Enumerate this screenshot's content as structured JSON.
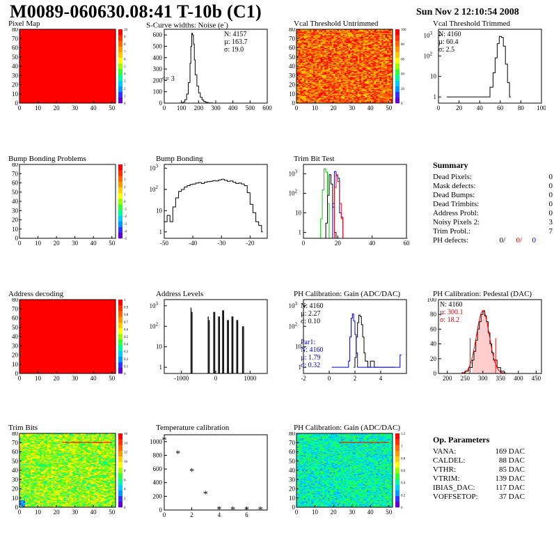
{
  "header": {
    "title": "M0089-060630.08:41 T-10b (C1)",
    "date": "Sun Nov  2 12:10:54 2008"
  },
  "panels": {
    "pixel_map": {
      "title": "Pixel Map"
    },
    "scurve": {
      "title": "S-Curve widths: Noise (e",
      "title_sup": "-",
      "title_end": ")",
      "stats": [
        "N: 4157",
        "µ: 163.7",
        "σ: 19.0"
      ],
      "annotation": "<= 3"
    },
    "vcal_untrimmed": {
      "title": "Vcal Threshold Untrimmed"
    },
    "vcal_trimmed": {
      "title": "Vcal Threshold Trimmed",
      "stats": [
        "N: 4160",
        "µ: 60.4",
        "σ:  2.5"
      ]
    },
    "bump_problems": {
      "title": "Bump Bonding Problems"
    },
    "bump_bonding": {
      "title": "Bump Bonding"
    },
    "trim_bit_test": {
      "title": "Trim Bit Test"
    },
    "address_decoding": {
      "title": "Address decoding"
    },
    "address_levels": {
      "title": "Address Levels"
    },
    "ph_gain": {
      "title": "PH Calibration: Gain (ADC/DAC)",
      "stats": [
        "N: 4160",
        "µ: 2.27",
        "σ: 0.10"
      ],
      "par1": {
        "label": "Par1:",
        "stats": [
          "N: 4160",
          "µ: 1.79",
          "σ: 0.32"
        ]
      }
    },
    "ph_pedestal": {
      "title": "PH Calibration: Pedestal (DAC)",
      "stats": [
        "N: 4160"
      ],
      "red_stats": [
        "µ: 300.1",
        "σ: 18.2"
      ]
    },
    "trim_bits": {
      "title": "Trim Bits"
    },
    "temperature": {
      "title": "Temperature calibration"
    },
    "ph_gain_map": {
      "title": "PH Calibration: Gain (ADC/DAC)"
    }
  },
  "summary": {
    "title": "Summary",
    "rows": [
      {
        "label": "Dead Pixels:",
        "value": "0"
      },
      {
        "label": "Mask defects:",
        "value": "0"
      },
      {
        "label": "Dead Bumps:",
        "value": "0"
      },
      {
        "label": "Dead Trimbits:",
        "value": "0"
      },
      {
        "label": "Address Probl:",
        "value": "0"
      },
      {
        "label": "Noisy Pixels 2:",
        "value": "3"
      },
      {
        "label": "Trim Probl.:",
        "value": "7"
      }
    ],
    "ph_label": "PH defects:",
    "ph_values": [
      {
        "text": "0/",
        "color": "#000000"
      },
      {
        "text": "0/",
        "color": "#cc0000"
      },
      {
        "text": "0",
        "color": "#0000cc"
      }
    ]
  },
  "op_params": {
    "title": "Op. Parameters",
    "rows": [
      {
        "label": "VANA:",
        "value": "169 DAC"
      },
      {
        "label": "CALDEL:",
        "value": "88 DAC"
      },
      {
        "label": "VTHR:",
        "value": "85 DAC"
      },
      {
        "label": "VTRIM:",
        "value": "139 DAC"
      },
      {
        "label": "IBIAS_DAC:",
        "value": "117 DAC"
      },
      {
        "label": "VOFFSETOP:",
        "value": "37 DAC"
      }
    ]
  },
  "colors": {
    "red": "#ff0000",
    "blue": "#0000cc",
    "green": "#00cc00",
    "palette": [
      "#6600cc",
      "#3333ff",
      "#0099ff",
      "#00ccff",
      "#00ff99",
      "#33ff33",
      "#99ff00",
      "#ffff00",
      "#ffcc00",
      "#ff9900",
      "#ff6600",
      "#ff3300",
      "#ff0000"
    ]
  },
  "chart_data": [
    {
      "id": "pixel_map",
      "type": "heatmap",
      "title": "Pixel Map",
      "xlim": [
        0,
        52
      ],
      "ylim": [
        0,
        80
      ],
      "xticks": [
        "0",
        "10",
        "20",
        "30",
        "40",
        "50"
      ],
      "yticks": [
        "0",
        "10",
        "20",
        "30",
        "40",
        "50",
        "60",
        "70",
        "80"
      ],
      "zticks": [
        "0",
        "1",
        "2",
        "3",
        "4",
        "5",
        "6",
        "7",
        "8",
        "9",
        "10"
      ],
      "fill": "uniform red"
    },
    {
      "id": "scurve",
      "type": "bar",
      "title": "S-Curve widths: Noise (e-)",
      "xlim": [
        0,
        600
      ],
      "ylim": [
        0,
        650
      ],
      "xticks": [
        "0",
        "100",
        "200",
        "300",
        "400",
        "500",
        "600"
      ],
      "yticks": [
        "0",
        "100",
        "200",
        "300",
        "400",
        "500",
        "600"
      ],
      "x": [
        90,
        100,
        110,
        120,
        130,
        140,
        150,
        155,
        160,
        165,
        170,
        175,
        180,
        190,
        200,
        210,
        220,
        230,
        240,
        250,
        260,
        270,
        280,
        290
      ],
      "values": [
        0,
        3,
        10,
        30,
        80,
        180,
        350,
        500,
        615,
        600,
        520,
        380,
        250,
        150,
        90,
        50,
        28,
        15,
        8,
        5,
        2,
        1,
        0,
        0
      ]
    },
    {
      "id": "vcal_untrimmed",
      "type": "heatmap",
      "title": "Vcal Threshold Untrimmed",
      "xlim": [
        0,
        52
      ],
      "ylim": [
        0,
        80
      ],
      "xticks": [
        "0",
        "10",
        "20",
        "30",
        "40",
        "50"
      ],
      "yticks": [
        "0",
        "10",
        "20",
        "30",
        "40",
        "50",
        "60",
        "70",
        "80"
      ],
      "zticks": [
        "0",
        "20",
        "40",
        "60",
        "80",
        "100"
      ]
    },
    {
      "id": "vcal_trimmed",
      "type": "bar",
      "title": "Vcal Threshold Trimmed",
      "log_y": true,
      "xlim": [
        0,
        100
      ],
      "ylim": [
        0.5,
        2000
      ],
      "xticks": [
        "0",
        "20",
        "40",
        "60",
        "80",
        "100"
      ],
      "yticks": [
        "1",
        "10",
        "10^2",
        "10^3"
      ],
      "x": [
        8,
        22,
        46,
        50,
        53,
        55,
        57,
        59,
        61,
        63,
        65,
        67,
        69
      ],
      "values": [
        1,
        1,
        1,
        3,
        15,
        80,
        400,
        900,
        800,
        300,
        40,
        5,
        1
      ]
    },
    {
      "id": "bump_problems",
      "type": "heatmap",
      "title": "Bump Bonding Problems",
      "xlim": [
        0,
        52
      ],
      "ylim": [
        0,
        80
      ],
      "xticks": [
        "0",
        "10",
        "20",
        "30",
        "40",
        "50"
      ],
      "yticks": [
        "0",
        "10",
        "20",
        "30",
        "40",
        "50",
        "60",
        "70",
        "80"
      ],
      "zticks": [
        "-5",
        "-4",
        "-3",
        "-2",
        "-1",
        "0",
        "1",
        "2",
        "3",
        "4",
        "5"
      ],
      "fill": "empty"
    },
    {
      "id": "bump_bonding",
      "type": "bar",
      "title": "Bump Bonding",
      "log_y": true,
      "xlim": [
        -50,
        -14
      ],
      "ylim": [
        0.5,
        1500
      ],
      "xticks": [
        "-50",
        "-40",
        "-30",
        "-20"
      ],
      "yticks": [
        "1",
        "10",
        "10^2",
        "10^3"
      ],
      "x": [
        -50,
        -49,
        -48,
        -47,
        -46,
        -45,
        -44,
        -43,
        -42,
        -41,
        -40,
        -39,
        -38,
        -37,
        -36,
        -35,
        -34,
        -33,
        -32,
        -31,
        -30,
        -29,
        -28,
        -27,
        -26,
        -25,
        -24,
        -23,
        -22,
        -21,
        -20,
        -19,
        -18,
        -17,
        -16
      ],
      "values": [
        3,
        6,
        3,
        15,
        40,
        80,
        100,
        130,
        150,
        170,
        180,
        200,
        210,
        190,
        220,
        230,
        240,
        260,
        250,
        280,
        300,
        270,
        240,
        250,
        220,
        190,
        200,
        180,
        150,
        70,
        20,
        8,
        3,
        2,
        1
      ]
    },
    {
      "id": "trim_bit_test",
      "type": "line",
      "title": "Trim Bit Test",
      "log_y": true,
      "xlim": [
        0,
        60
      ],
      "ylim": [
        0.5,
        3000
      ],
      "xticks": [
        "0",
        "20",
        "40",
        "60"
      ],
      "yticks": [
        "1",
        "10",
        "10^2",
        "10^3"
      ],
      "series": [
        {
          "color": "green",
          "x": [
            0,
            9,
            10,
            11,
            12,
            13,
            14,
            15,
            16,
            60
          ],
          "values": [
            0.5,
            0.5,
            5,
            150,
            1800,
            1200,
            30,
            0.5,
            0.5,
            0.5
          ]
        },
        {
          "color": "black",
          "x": [
            12,
            13,
            14,
            15,
            16,
            17,
            18,
            19,
            20
          ],
          "values": [
            0.5,
            3,
            80,
            900,
            300,
            20,
            1,
            0.5,
            0.5
          ]
        },
        {
          "color": "blue",
          "x": [
            16,
            17,
            18,
            19,
            20,
            21,
            22,
            23
          ],
          "values": [
            0.5,
            30,
            1300,
            800,
            600,
            10,
            6,
            0.5
          ]
        },
        {
          "color": "red",
          "x": [
            17,
            18,
            19,
            20,
            21,
            22,
            23
          ],
          "values": [
            0.5,
            200,
            900,
            400,
            30,
            5,
            0.5
          ]
        }
      ]
    },
    {
      "id": "address_decoding",
      "type": "heatmap",
      "title": "Address decoding",
      "xlim": [
        0,
        52
      ],
      "ylim": [
        0,
        80
      ],
      "xticks": [
        "0",
        "10",
        "20",
        "30",
        "40",
        "50"
      ],
      "yticks": [
        "0",
        "10",
        "20",
        "30",
        "40",
        "50",
        "60",
        "70",
        "80"
      ],
      "zticks": [
        "0",
        "0.1",
        "0.2",
        "0.3",
        "0.4",
        "0.5",
        "0.6",
        "0.7",
        "0.8",
        "0.9",
        "1"
      ],
      "fill": "uniform red"
    },
    {
      "id": "address_levels",
      "type": "bar",
      "title": "Address Levels",
      "log_y": true,
      "xlim": [
        -1500,
        1500
      ],
      "ylim": [
        0.5,
        2000
      ],
      "xticks": [
        "-1000",
        "0",
        "1000"
      ],
      "yticks": [
        "1",
        "10",
        "10^2",
        "10^3"
      ],
      "x": [
        -720,
        -690,
        -220,
        -190,
        -60,
        -30,
        80,
        110,
        200,
        230,
        340,
        370,
        470,
        500,
        610,
        640,
        780,
        810
      ],
      "values": [
        800,
        500,
        300,
        200,
        500,
        500,
        300,
        300,
        600,
        600,
        200,
        200,
        300,
        300,
        200,
        200,
        100,
        100
      ]
    },
    {
      "id": "ph_gain",
      "type": "line",
      "title": "PH Calibration: Gain (ADC/DAC)",
      "log_y": true,
      "xlim": [
        -2,
        6
      ],
      "ylim": [
        0.5,
        2000
      ],
      "xticks": [
        "-2",
        "0",
        "2",
        "4"
      ],
      "yticks": [
        "1",
        "10",
        "10^2",
        "10^3"
      ],
      "series": [
        {
          "color": "black",
          "x": [
            1.9,
            2.0,
            2.1,
            2.2,
            2.3,
            2.4,
            2.5,
            2.6,
            2.7,
            2.8,
            3.0,
            3.2,
            3.5,
            4.0,
            5.0
          ],
          "values": [
            1,
            3,
            30,
            150,
            350,
            300,
            120,
            30,
            5,
            2,
            1,
            2,
            1,
            1,
            1
          ]
        },
        {
          "color": "blue",
          "x": [
            0.2,
            1.5,
            1.6,
            1.7,
            1.8,
            1.9,
            2.0,
            2.1,
            2.2,
            2.4,
            3.0,
            5.5
          ],
          "values": [
            1,
            2,
            30,
            250,
            400,
            180,
            40,
            5,
            1,
            1,
            1,
            4
          ]
        }
      ]
    },
    {
      "id": "ph_pedestal",
      "type": "bar",
      "title": "PH Calibration: Pedestal (DAC)",
      "xlim": [
        175,
        465
      ],
      "ylim": [
        0,
        100
      ],
      "xticks": [
        "200",
        "250",
        "300",
        "350",
        "400",
        "450"
      ],
      "yticks": [
        "0",
        "20",
        "40",
        "60",
        "80",
        "100"
      ],
      "x": [
        240,
        250,
        260,
        270,
        275,
        280,
        285,
        290,
        295,
        300,
        305,
        310,
        315,
        320,
        325,
        330,
        340,
        350,
        360
      ],
      "values": [
        1,
        3,
        8,
        18,
        30,
        45,
        60,
        70,
        80,
        85,
        78,
        70,
        55,
        40,
        28,
        18,
        8,
        3,
        1
      ],
      "fit": "red gaussian, mean 300.1, sigma 18.2"
    },
    {
      "id": "trim_bits",
      "type": "heatmap",
      "title": "Trim Bits",
      "xlim": [
        0,
        52
      ],
      "ylim": [
        0,
        80
      ],
      "xticks": [
        "0",
        "10",
        "20",
        "30",
        "40",
        "50"
      ],
      "yticks": [
        "0",
        "10",
        "20",
        "30",
        "40",
        "50",
        "60",
        "70",
        "80"
      ],
      "zticks": [
        "0",
        "2",
        "4",
        "6",
        "8",
        "10",
        "12",
        "14",
        "16"
      ]
    },
    {
      "id": "temperature",
      "type": "scatter",
      "title": "Temperature calibration",
      "xlim": [
        0,
        7.5
      ],
      "ylim": [
        0,
        1100
      ],
      "xticks": [
        "0",
        "2",
        "4",
        "6"
      ],
      "yticks": [
        "0",
        "200",
        "400",
        "600",
        "800",
        "1000"
      ],
      "x": [
        0,
        1,
        2,
        3,
        4,
        5,
        6,
        7
      ],
      "values": [
        1030,
        830,
        570,
        240,
        15,
        10,
        10,
        10
      ]
    },
    {
      "id": "ph_gain_map",
      "type": "heatmap",
      "title": "PH Calibration: Gain (ADC/DAC)",
      "xlim": [
        0,
        52
      ],
      "ylim": [
        0,
        80
      ],
      "xticks": [
        "0",
        "10",
        "20",
        "30",
        "40",
        "50"
      ],
      "yticks": [
        "0",
        "10",
        "20",
        "30",
        "40",
        "50",
        "60",
        "70",
        "80"
      ],
      "zticks": [
        "0",
        "0.2",
        "0.4",
        "0.6",
        "0.8",
        "1",
        "1.2"
      ]
    }
  ]
}
